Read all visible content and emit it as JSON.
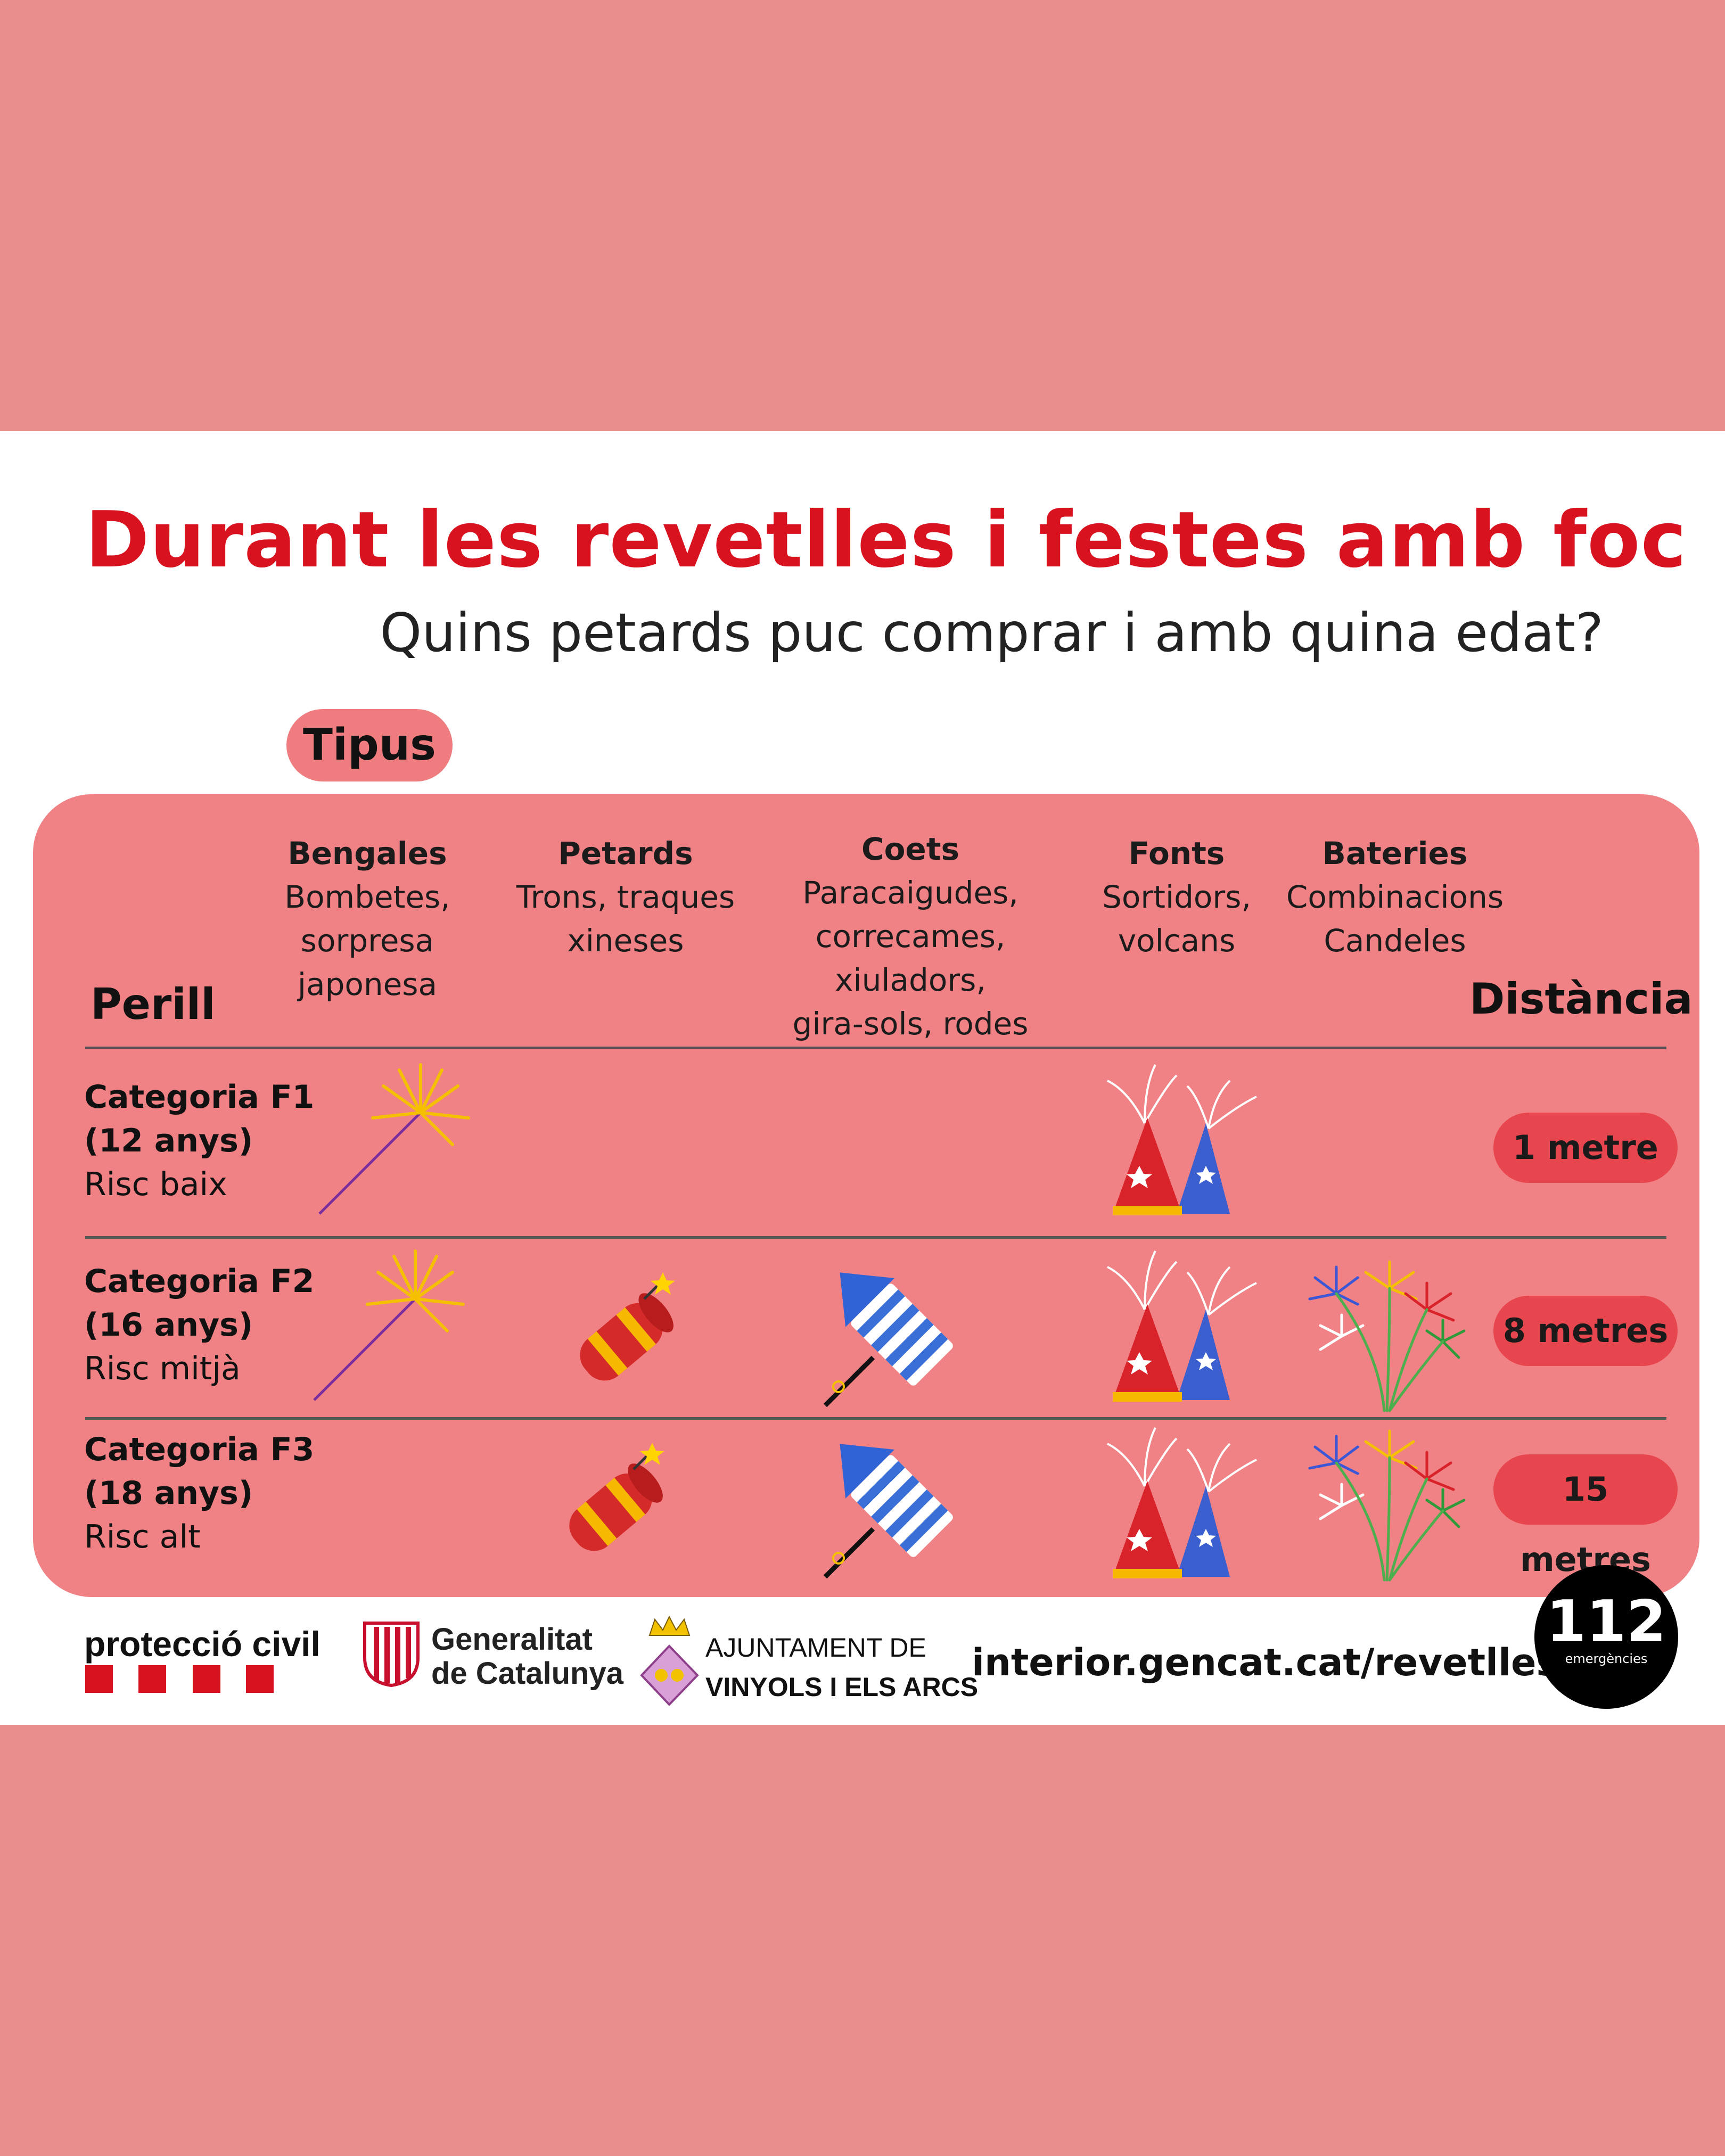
{
  "poster": {
    "title": "Durant les revetlles i festes amb foc",
    "subtitle": "Quins petards puc comprar i amb quina edat?",
    "tipus_label": "Tipus",
    "perill_label": "Perill",
    "distancia_label": "Distància"
  },
  "columns": [
    {
      "name": "Bengales",
      "line1": "Bombetes,",
      "line2": "sorpresa japonesa",
      "line3": ""
    },
    {
      "name": "Petards",
      "line1": "Trons, traques",
      "line2": "xineses",
      "line3": ""
    },
    {
      "name": "Coets",
      "line1": "Paracaigudes,",
      "line2": "correcames, xiuladors,",
      "line3": "gira-sols, rodes"
    },
    {
      "name": "Fonts",
      "line1": "Sortidors,",
      "line2": "volcans",
      "line3": ""
    },
    {
      "name": "Bateries",
      "line1": "Combinacions",
      "line2": "Candeles",
      "line3": ""
    }
  ],
  "rows": [
    {
      "category": "Categoria F1",
      "age": "(12 anys)",
      "risk": "Risc baix",
      "distance": "1 metre",
      "icons": [
        "sparkler-icon",
        "",
        "",
        "fountain-icon",
        ""
      ]
    },
    {
      "category": "Categoria F2",
      "age": "(16 anys)",
      "risk": "Risc mitjà",
      "distance": "8 metres",
      "icons": [
        "sparkler-icon",
        "firecracker-icon",
        "rocket-icon",
        "fountain-icon",
        "fireworks-battery-icon"
      ]
    },
    {
      "category": "Categoria F3",
      "age": "(18 anys)",
      "risk": "Risc alt",
      "distance": "15 metres",
      "icons": [
        "",
        "firecracker-icon",
        "rocket-icon",
        "fountain-icon",
        "fireworks-battery-icon"
      ]
    }
  ],
  "footer": {
    "proteccio": "protecció civil",
    "generalitat_line1": "Generalitat",
    "generalitat_line2": "de Catalunya",
    "ajuntament_line1": "AJUNTAMENT DE",
    "ajuntament_line2": "VINYOLS I ELS ARCS",
    "url": "interior.gencat.cat/revetlles",
    "emergency_number": "112",
    "emergency_label": "emergències"
  },
  "colors": {
    "accent_red": "#d9121f",
    "panel": "#f08286",
    "distance_pill": "#e8464e",
    "background": "#e98e8d"
  }
}
